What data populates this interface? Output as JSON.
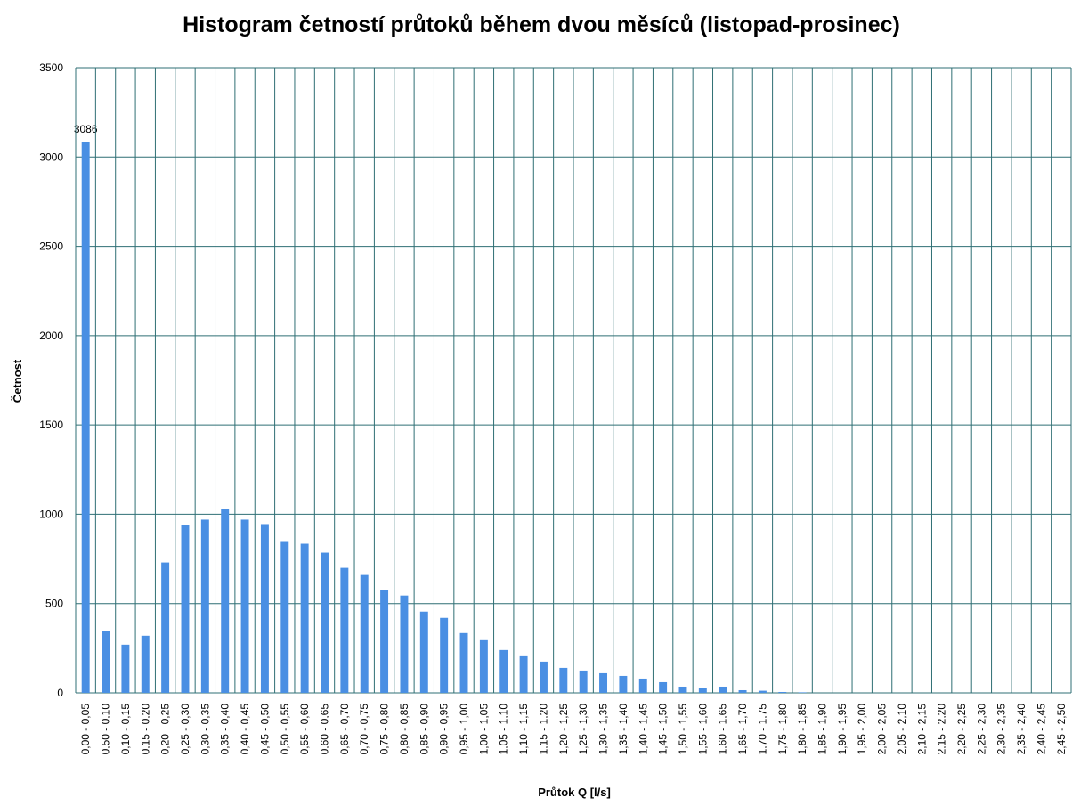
{
  "chart_data": {
    "type": "bar",
    "title": "Histogram četností průtoků během dvou měsíců (listopad-prosinec)",
    "x_label": "Průtok Q [l/s]",
    "y_label": "Četnost",
    "categories": [
      "0,00 - 0,05",
      "0,50 - 0,10",
      "0,10 - 0,15",
      "0,15 - 0,20",
      "0,20 - 0,25",
      "0,25 - 0,30",
      "0,30 - 0,35",
      "0,35 - 0,40",
      "0,40 - 0,45",
      "0,45 - 0,50",
      "0,50 - 0,55",
      "0,55 - 0,60",
      "0,60 - 0,65",
      "0,65 - 0,70",
      "0,70 - 0,75",
      "0,75 - 0,80",
      "0,80 - 0,85",
      "0,85 - 0,90",
      "0,90 - 0,95",
      "0,95 - 1,00",
      "1,00 - 1,05",
      "1,05 - 1,10",
      "1,10 - 1,15",
      "1,15 - 1,20",
      "1,20 - 1,25",
      "1,25 - 1,30",
      "1,30 - 1,35",
      "1,35 - 1,40",
      "1,40 - 1,45",
      "1,45 - 1,50",
      "1,50 - 1,55",
      "1,55 - 1,60",
      "1,60 - 1,65",
      "1,65 - 1,70",
      "1,70 - 1,75",
      "1,75 - 1,80",
      "1,80 - 1,85",
      "1,85 - 1,90",
      "1,90 - 1,95",
      "1,95 - 2,00",
      "2,00 - 2,05",
      "2,05 - 2,10",
      "2,10 - 2,15",
      "2,15 - 2,20",
      "2,20 - 2,25",
      "2,25 - 2,30",
      "2,30 - 2,35",
      "2,35 - 2,40",
      "2,40 - 2,45",
      "2,45 - 2,50"
    ],
    "values": [
      3086,
      345,
      270,
      320,
      730,
      940,
      970,
      1030,
      970,
      945,
      845,
      835,
      785,
      700,
      660,
      575,
      545,
      455,
      420,
      335,
      295,
      240,
      205,
      175,
      140,
      125,
      110,
      95,
      80,
      60,
      35,
      25,
      35,
      15,
      12,
      5,
      3,
      0,
      0,
      0,
      0,
      0,
      0,
      0,
      0,
      0,
      0,
      0,
      0,
      0
    ],
    "color": "#4a8fe3",
    "grid_color": "#2f6f74",
    "ylim": [
      0,
      3500
    ],
    "yticks": [
      0,
      500,
      1000,
      1500,
      2000,
      2500,
      3000,
      3500
    ],
    "grid": true
  }
}
